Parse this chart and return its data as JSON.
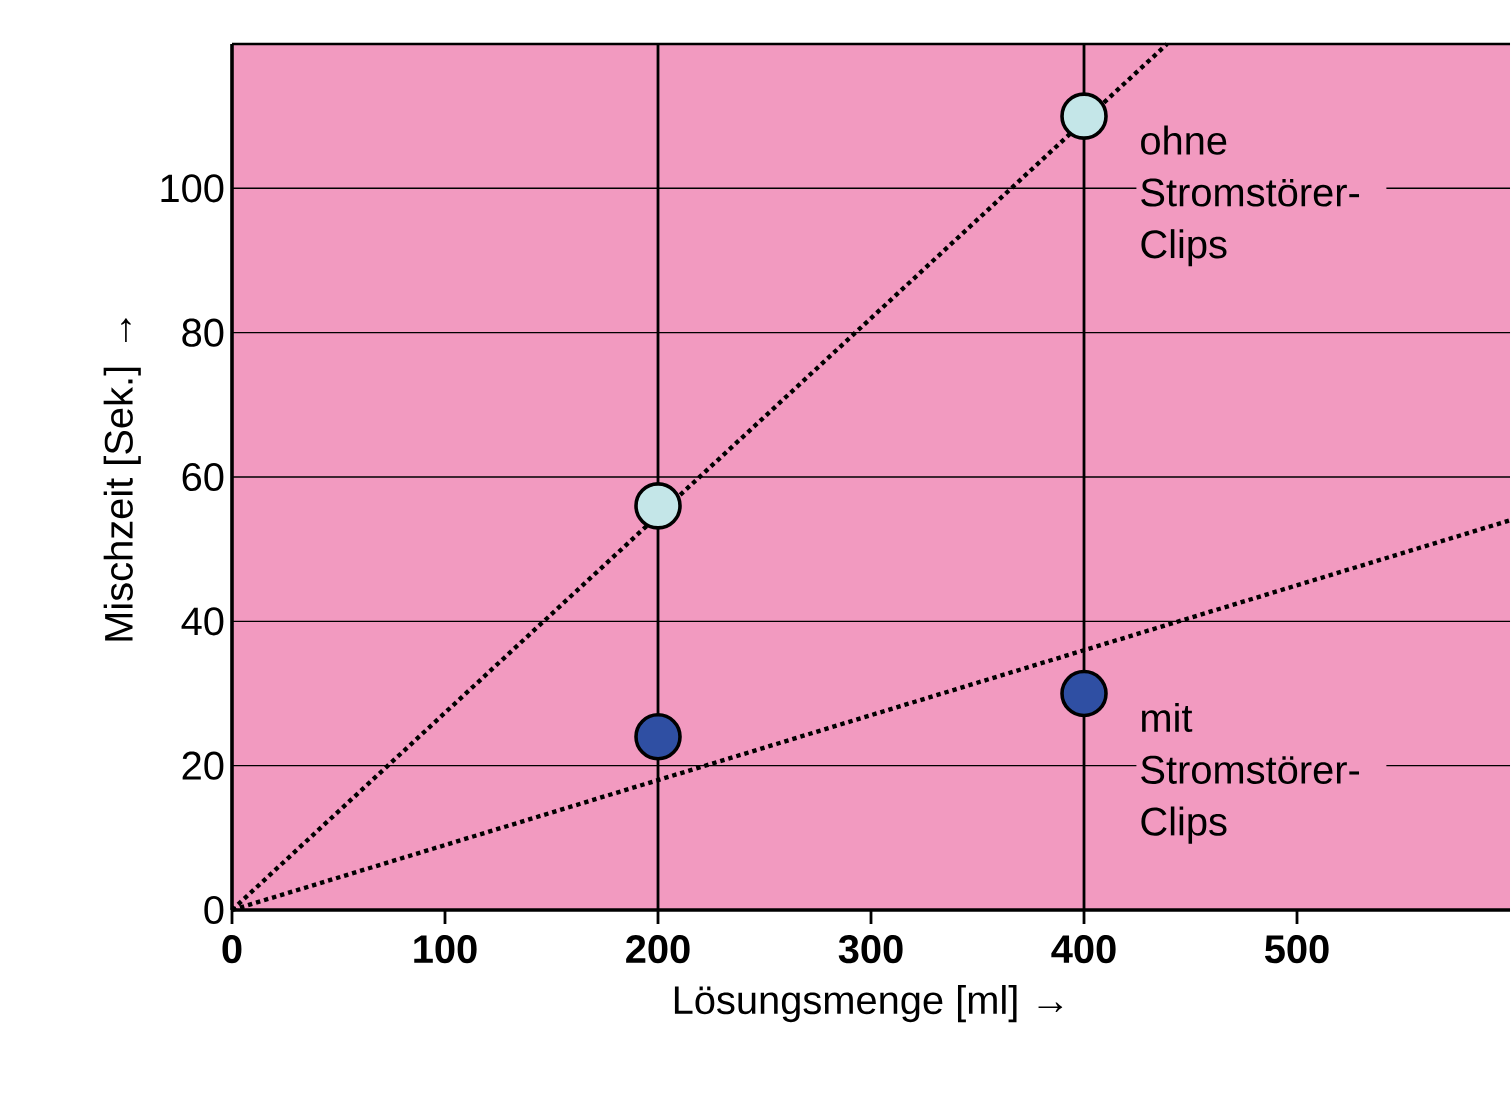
{
  "chart_data": {
    "type": "scatter",
    "xlabel": "Lösungsmenge [ml] →",
    "ylabel": "Mischzeit [Sek.] →",
    "xlim": [
      0,
      600
    ],
    "ylim": [
      0,
      120
    ],
    "xticks": [
      0,
      100,
      200,
      300,
      400,
      500
    ],
    "yticks": [
      0,
      20,
      40,
      60,
      80,
      100
    ],
    "grid": "y",
    "marker": "circle",
    "legend": "right",
    "ref_lines": [
      {
        "axis": "x",
        "value": 200,
        "color": "#000000"
      },
      {
        "axis": "x",
        "value": 400,
        "color": "#000000"
      }
    ],
    "series": [
      {
        "name": "ohne Stromstörer-Clips",
        "color": "#c4e6e8",
        "x": [
          200,
          400
        ],
        "values": [
          56,
          110
        ]
      },
      {
        "name": "mit Stromstörer-Clips",
        "color": "#2f4fa3",
        "x": [
          200,
          400
        ],
        "values": [
          24,
          30
        ]
      },
      {
        "type": "line",
        "color": "#000000",
        "line_style": "dotted",
        "marker": "none",
        "x": [
          0,
          439
        ],
        "values": [
          0,
          120
        ]
      },
      {
        "type": "line",
        "color": "#000000",
        "line_style": "dotted",
        "marker": "none",
        "x": [
          0,
          600
        ],
        "values": [
          0,
          54
        ]
      }
    ]
  }
}
